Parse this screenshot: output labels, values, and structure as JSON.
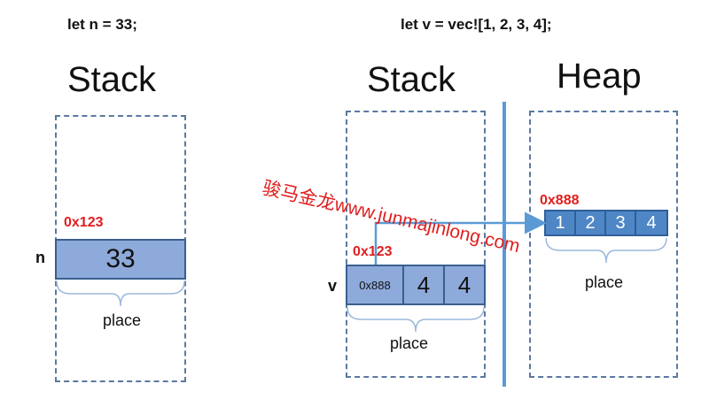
{
  "left_panel": {
    "code": "let n = 33;",
    "stack_title": "Stack",
    "address": "0x123",
    "var_name": "n",
    "value": "33",
    "place_label": "place"
  },
  "right_panel": {
    "code": "let v = vec![1, 2, 3, 4];",
    "stack_title": "Stack",
    "heap_title": "Heap",
    "stack_address": "0x123",
    "var_name": "v",
    "stack_cells": [
      "0x888",
      "4",
      "4"
    ],
    "heap_address": "0x888",
    "heap_cells": [
      "1",
      "2",
      "3",
      "4"
    ],
    "stack_place_label": "place",
    "heap_place_label": "place"
  },
  "watermark": "骏马金龙www.junmajinlong.com",
  "colors": {
    "stack_cell_fill": "#8eaadb",
    "heap_cell_fill": "#4f86c6",
    "dashed_border": "#5a79a0",
    "address_text": "#e01e1e",
    "arrow": "#5b9bd5"
  }
}
